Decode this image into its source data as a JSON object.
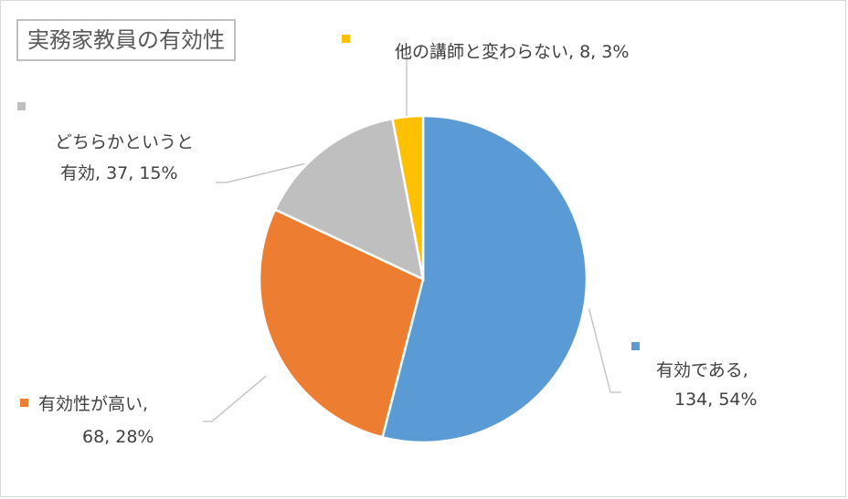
{
  "chart_data": {
    "type": "pie",
    "title": "実務家教員の有効性",
    "slices": [
      {
        "label": "有効である",
        "count": 134,
        "percent": "54%",
        "value": 0.54,
        "color": "#5b9bd5"
      },
      {
        "label": "有効性が高い",
        "count": 68,
        "percent": "28%",
        "value": 0.28,
        "color": "#ed7d31"
      },
      {
        "label": "どちらかというと有効",
        "count": 37,
        "percent": "15%",
        "value": 0.15,
        "color": "#bfbfbf"
      },
      {
        "label": "他の講師と変わらない",
        "count": 8,
        "percent": "3%",
        "value": 0.03,
        "color": "#ffc000"
      }
    ]
  },
  "labels": {
    "slice0_line1": "有効である,",
    "slice0_line2": "134, 54%",
    "slice1_line1": "有効性が高い,",
    "slice1_line2": "68, 28%",
    "slice2_line1": "どちらかというと",
    "slice2_line2": "有効, 37, 15%",
    "slice3_line1": "他の講師と変わらない, 8, 3%"
  }
}
